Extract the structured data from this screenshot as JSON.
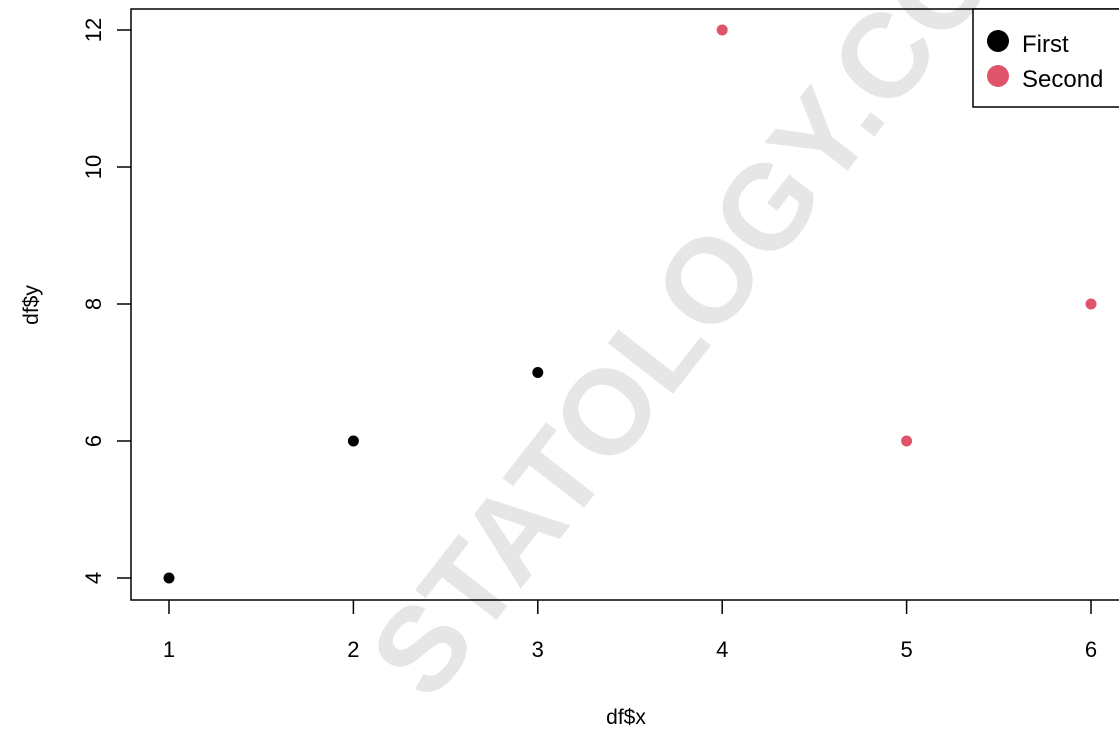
{
  "watermark_text": "STATOLOGY.COM",
  "chart_data": {
    "type": "scatter",
    "title": "",
    "xlabel": "df$x",
    "ylabel": "df$y",
    "xlim": [
      1,
      6
    ],
    "ylim": [
      4,
      12
    ],
    "xticks": [
      1,
      2,
      3,
      4,
      5,
      6
    ],
    "yticks": [
      4,
      6,
      8,
      10,
      12
    ],
    "grid": false,
    "legend_position": "top-right",
    "series": [
      {
        "name": "First",
        "color": "#000000",
        "points": [
          {
            "x": 1,
            "y": 4
          },
          {
            "x": 2,
            "y": 6
          },
          {
            "x": 3,
            "y": 7
          }
        ]
      },
      {
        "name": "Second",
        "color": "#df536b",
        "points": [
          {
            "x": 4,
            "y": 12
          },
          {
            "x": 5,
            "y": 6
          },
          {
            "x": 6,
            "y": 8
          }
        ]
      }
    ]
  }
}
